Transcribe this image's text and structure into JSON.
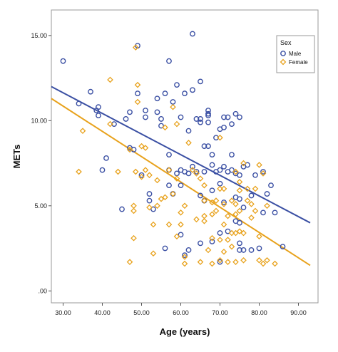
{
  "chart_data": {
    "type": "scatter",
    "xlabel": "Age (years)",
    "ylabel": "METs",
    "xlim": [
      27,
      95
    ],
    "ylim": [
      -0.7,
      16.5
    ],
    "xticks": [
      "30.00",
      "40.00",
      "50.00",
      "60.00",
      "70.00",
      "80.00",
      "90.00"
    ],
    "xtick_values": [
      30,
      40,
      50,
      60,
      70,
      80,
      90
    ],
    "yticks": [
      ".00",
      "5.00",
      "10.00",
      "15.00"
    ],
    "ytick_values": [
      0,
      5,
      10,
      15
    ],
    "grid": false,
    "legend": {
      "title": "Sex",
      "placement": "top-right"
    },
    "series": [
      {
        "name": "Male",
        "marker": "circle",
        "color": "#3a4fa3",
        "fit_line": {
          "x": [
            27,
            93
          ],
          "y": [
            12.0,
            4.0
          ]
        },
        "points": [
          [
            30,
            13.5
          ],
          [
            34,
            11.0
          ],
          [
            37,
            11.7
          ],
          [
            38.5,
            10.6
          ],
          [
            39,
            10.3
          ],
          [
            39,
            10.8
          ],
          [
            40,
            7.1
          ],
          [
            41,
            7.8
          ],
          [
            43,
            9.8
          ],
          [
            45,
            4.8
          ],
          [
            46,
            10.1
          ],
          [
            47,
            10.5
          ],
          [
            47,
            8.4
          ],
          [
            48,
            8.3
          ],
          [
            49,
            14.4
          ],
          [
            49,
            11.6
          ],
          [
            50,
            6.8
          ],
          [
            51,
            10.2
          ],
          [
            51,
            10.6
          ],
          [
            52,
            5.7
          ],
          [
            52,
            5.3
          ],
          [
            53,
            4.8
          ],
          [
            54,
            11.3
          ],
          [
            54,
            10.5
          ],
          [
            55,
            10.1
          ],
          [
            55,
            9.7
          ],
          [
            56,
            11.6
          ],
          [
            56,
            2.5
          ],
          [
            57,
            13.5
          ],
          [
            57,
            8.0
          ],
          [
            57,
            7.1
          ],
          [
            57,
            6.2
          ],
          [
            58,
            5.7
          ],
          [
            58,
            11.1
          ],
          [
            59,
            12.1
          ],
          [
            59,
            6.9
          ],
          [
            60,
            10.2
          ],
          [
            60,
            7.1
          ],
          [
            60,
            6.2
          ],
          [
            60,
            3.3
          ],
          [
            61,
            11.6
          ],
          [
            61,
            7.0
          ],
          [
            61,
            2.1
          ],
          [
            62,
            9.4
          ],
          [
            62,
            6.9
          ],
          [
            62,
            2.4
          ],
          [
            63,
            15.1
          ],
          [
            63,
            11.8
          ],
          [
            63,
            7.3
          ],
          [
            64,
            10.1
          ],
          [
            64,
            7.0
          ],
          [
            65,
            12.3
          ],
          [
            65,
            10.1
          ],
          [
            65,
            9.9
          ],
          [
            65,
            5.6
          ],
          [
            65,
            2.8
          ],
          [
            66,
            8.5
          ],
          [
            66,
            7.0
          ],
          [
            66,
            5.3
          ],
          [
            67,
            10.4
          ],
          [
            67,
            10.6
          ],
          [
            67,
            10.3
          ],
          [
            67,
            9.9
          ],
          [
            67,
            8.5
          ],
          [
            68,
            8.0
          ],
          [
            68,
            7.4
          ],
          [
            68,
            5.9
          ],
          [
            68,
            2.9
          ],
          [
            69,
            9.0
          ],
          [
            69,
            7.0
          ],
          [
            70,
            9.5
          ],
          [
            70,
            7.1
          ],
          [
            70,
            6.3
          ],
          [
            70,
            3.4
          ],
          [
            70,
            1.7
          ],
          [
            71,
            10.2
          ],
          [
            71,
            9.6
          ],
          [
            71,
            7.3
          ],
          [
            71,
            5.2
          ],
          [
            72,
            10.2
          ],
          [
            72,
            7.0
          ],
          [
            72,
            3.5
          ],
          [
            73,
            9.8
          ],
          [
            73,
            8.0
          ],
          [
            73,
            7.1
          ],
          [
            74,
            10.4
          ],
          [
            74,
            6.9
          ],
          [
            74,
            5.5
          ],
          [
            74,
            4.1
          ],
          [
            75,
            10.2
          ],
          [
            75,
            6.8
          ],
          [
            75,
            5.4
          ],
          [
            75,
            4.0
          ],
          [
            75,
            2.8
          ],
          [
            75,
            2.4
          ],
          [
            76,
            7.3
          ],
          [
            76,
            4.9
          ],
          [
            76,
            2.4
          ],
          [
            77,
            7.4
          ],
          [
            78,
            5.6
          ],
          [
            78,
            2.4
          ],
          [
            79,
            6.8
          ],
          [
            80,
            2.5
          ],
          [
            81,
            4.6
          ],
          [
            81,
            7.0
          ],
          [
            82,
            5.7
          ],
          [
            83,
            6.2
          ],
          [
            84,
            4.6
          ],
          [
            86,
            2.6
          ]
        ]
      },
      {
        "name": "Female",
        "marker": "diamond",
        "color": "#e8a21c",
        "fit_line": {
          "x": [
            27,
            93
          ],
          "y": [
            11.3,
            1.5
          ]
        },
        "points": [
          [
            34,
            7.0
          ],
          [
            35,
            9.4
          ],
          [
            42,
            12.4
          ],
          [
            42,
            9.8
          ],
          [
            44,
            7.0
          ],
          [
            47,
            8.3
          ],
          [
            47,
            1.7
          ],
          [
            48,
            4.7
          ],
          [
            48,
            5.0
          ],
          [
            48,
            3.1
          ],
          [
            48.5,
            7.0
          ],
          [
            48.5,
            14.3
          ],
          [
            49,
            12.1
          ],
          [
            49,
            11.1
          ],
          [
            50,
            6.7
          ],
          [
            50,
            8.5
          ],
          [
            51,
            8.4
          ],
          [
            51,
            7.1
          ],
          [
            52,
            6.8
          ],
          [
            52,
            4.9
          ],
          [
            53,
            3.9
          ],
          [
            53,
            2.2
          ],
          [
            54,
            6.5
          ],
          [
            54,
            5.0
          ],
          [
            55,
            5.4
          ],
          [
            56,
            9.6
          ],
          [
            56,
            5.5
          ],
          [
            57,
            7.1
          ],
          [
            57,
            3.9
          ],
          [
            58,
            10.8
          ],
          [
            58,
            5.7
          ],
          [
            59,
            9.8
          ],
          [
            59,
            6.6
          ],
          [
            59,
            3.2
          ],
          [
            60,
            3.9
          ],
          [
            60,
            4.6
          ],
          [
            61,
            5.0
          ],
          [
            61,
            2.0
          ],
          [
            61,
            1.6
          ],
          [
            62,
            8.7
          ],
          [
            63,
            7.1
          ],
          [
            64,
            6.9
          ],
          [
            64,
            4.2
          ],
          [
            65,
            6.6
          ],
          [
            65,
            1.7
          ],
          [
            66,
            6.2
          ],
          [
            66,
            4.1
          ],
          [
            66,
            4.4
          ],
          [
            66,
            5.3
          ],
          [
            67,
            2.4
          ],
          [
            68,
            5.2
          ],
          [
            68,
            4.5
          ],
          [
            68,
            3.1
          ],
          [
            68,
            1.6
          ],
          [
            69,
            4.7
          ],
          [
            69,
            5.3
          ],
          [
            70,
            9.0
          ],
          [
            70,
            6.0
          ],
          [
            70,
            3.0
          ],
          [
            70,
            1.8
          ],
          [
            71,
            5.1
          ],
          [
            71,
            6.0
          ],
          [
            71,
            3.9
          ],
          [
            71,
            2.3
          ],
          [
            72,
            4.4
          ],
          [
            72,
            3.0
          ],
          [
            72,
            1.7
          ],
          [
            73,
            5.3
          ],
          [
            73,
            3.4
          ],
          [
            73,
            2.6
          ],
          [
            74,
            7.0
          ],
          [
            74,
            5.1
          ],
          [
            74,
            4.5
          ],
          [
            74,
            3.4
          ],
          [
            74,
            1.7
          ],
          [
            75,
            6.4
          ],
          [
            75,
            5.9
          ],
          [
            75,
            4.7
          ],
          [
            75,
            3.5
          ],
          [
            76,
            7.5
          ],
          [
            76,
            3.4
          ],
          [
            76,
            1.8
          ],
          [
            77,
            6.0
          ],
          [
            77,
            5.3
          ],
          [
            78,
            5.1
          ],
          [
            78,
            4.3
          ],
          [
            79,
            6.0
          ],
          [
            79,
            4.7
          ],
          [
            80,
            7.4
          ],
          [
            80,
            3.2
          ],
          [
            80,
            1.8
          ],
          [
            81,
            6.9
          ],
          [
            81,
            1.6
          ],
          [
            82,
            1.8
          ],
          [
            82,
            5.0
          ],
          [
            84,
            1.6
          ]
        ]
      }
    ]
  }
}
